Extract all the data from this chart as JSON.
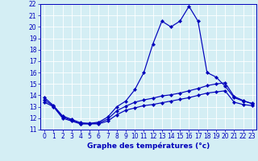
{
  "xlabel": "Graphe des températures (°c)",
  "xlim_min": 0,
  "xlim_max": 23,
  "ylim_min": 11,
  "ylim_max": 22,
  "background_color": "#d4eef4",
  "plot_bg_color": "#d4eef4",
  "grid_color": "#ffffff",
  "line_color": "#0000bb",
  "xticks": [
    0,
    1,
    2,
    3,
    4,
    5,
    6,
    7,
    8,
    9,
    10,
    11,
    12,
    13,
    14,
    15,
    16,
    17,
    18,
    19,
    20,
    21,
    22,
    23
  ],
  "yticks": [
    11,
    12,
    13,
    14,
    15,
    16,
    17,
    18,
    19,
    20,
    21,
    22
  ],
  "curve_main_x": [
    0,
    1,
    2,
    3,
    4,
    5,
    6,
    7,
    8,
    9,
    10,
    11,
    12,
    13,
    14,
    15,
    16,
    17,
    18,
    19,
    20,
    21,
    22,
    23
  ],
  "curve_main_y": [
    13.8,
    13.1,
    12.2,
    11.9,
    11.6,
    11.55,
    11.65,
    12.1,
    13.0,
    13.5,
    14.5,
    16.0,
    18.5,
    20.5,
    20.0,
    20.5,
    21.8,
    20.5,
    16.0,
    15.6,
    14.8,
    13.8,
    13.5,
    13.3
  ],
  "curve_low_x": [
    0,
    1,
    2,
    3,
    4,
    5,
    6,
    7,
    8,
    9,
    10,
    11,
    12,
    13,
    14,
    15,
    16,
    17,
    18,
    19,
    20,
    21,
    22,
    23
  ],
  "curve_low_y": [
    13.4,
    13.0,
    12.0,
    11.75,
    11.5,
    11.5,
    11.5,
    11.75,
    12.3,
    12.7,
    12.9,
    13.1,
    13.2,
    13.35,
    13.5,
    13.65,
    13.8,
    14.0,
    14.2,
    14.3,
    14.4,
    13.4,
    13.2,
    13.1
  ],
  "curve_mid_x": [
    0,
    1,
    2,
    3,
    4,
    5,
    6,
    7,
    8,
    9,
    10,
    11,
    12,
    13,
    14,
    15,
    16,
    17,
    18,
    19,
    20,
    21,
    22,
    23
  ],
  "curve_mid_y": [
    13.6,
    13.05,
    12.1,
    11.82,
    11.52,
    11.52,
    11.57,
    11.92,
    12.65,
    13.05,
    13.4,
    13.6,
    13.75,
    13.95,
    14.05,
    14.2,
    14.4,
    14.6,
    14.85,
    15.0,
    15.1,
    13.9,
    13.55,
    13.25
  ]
}
